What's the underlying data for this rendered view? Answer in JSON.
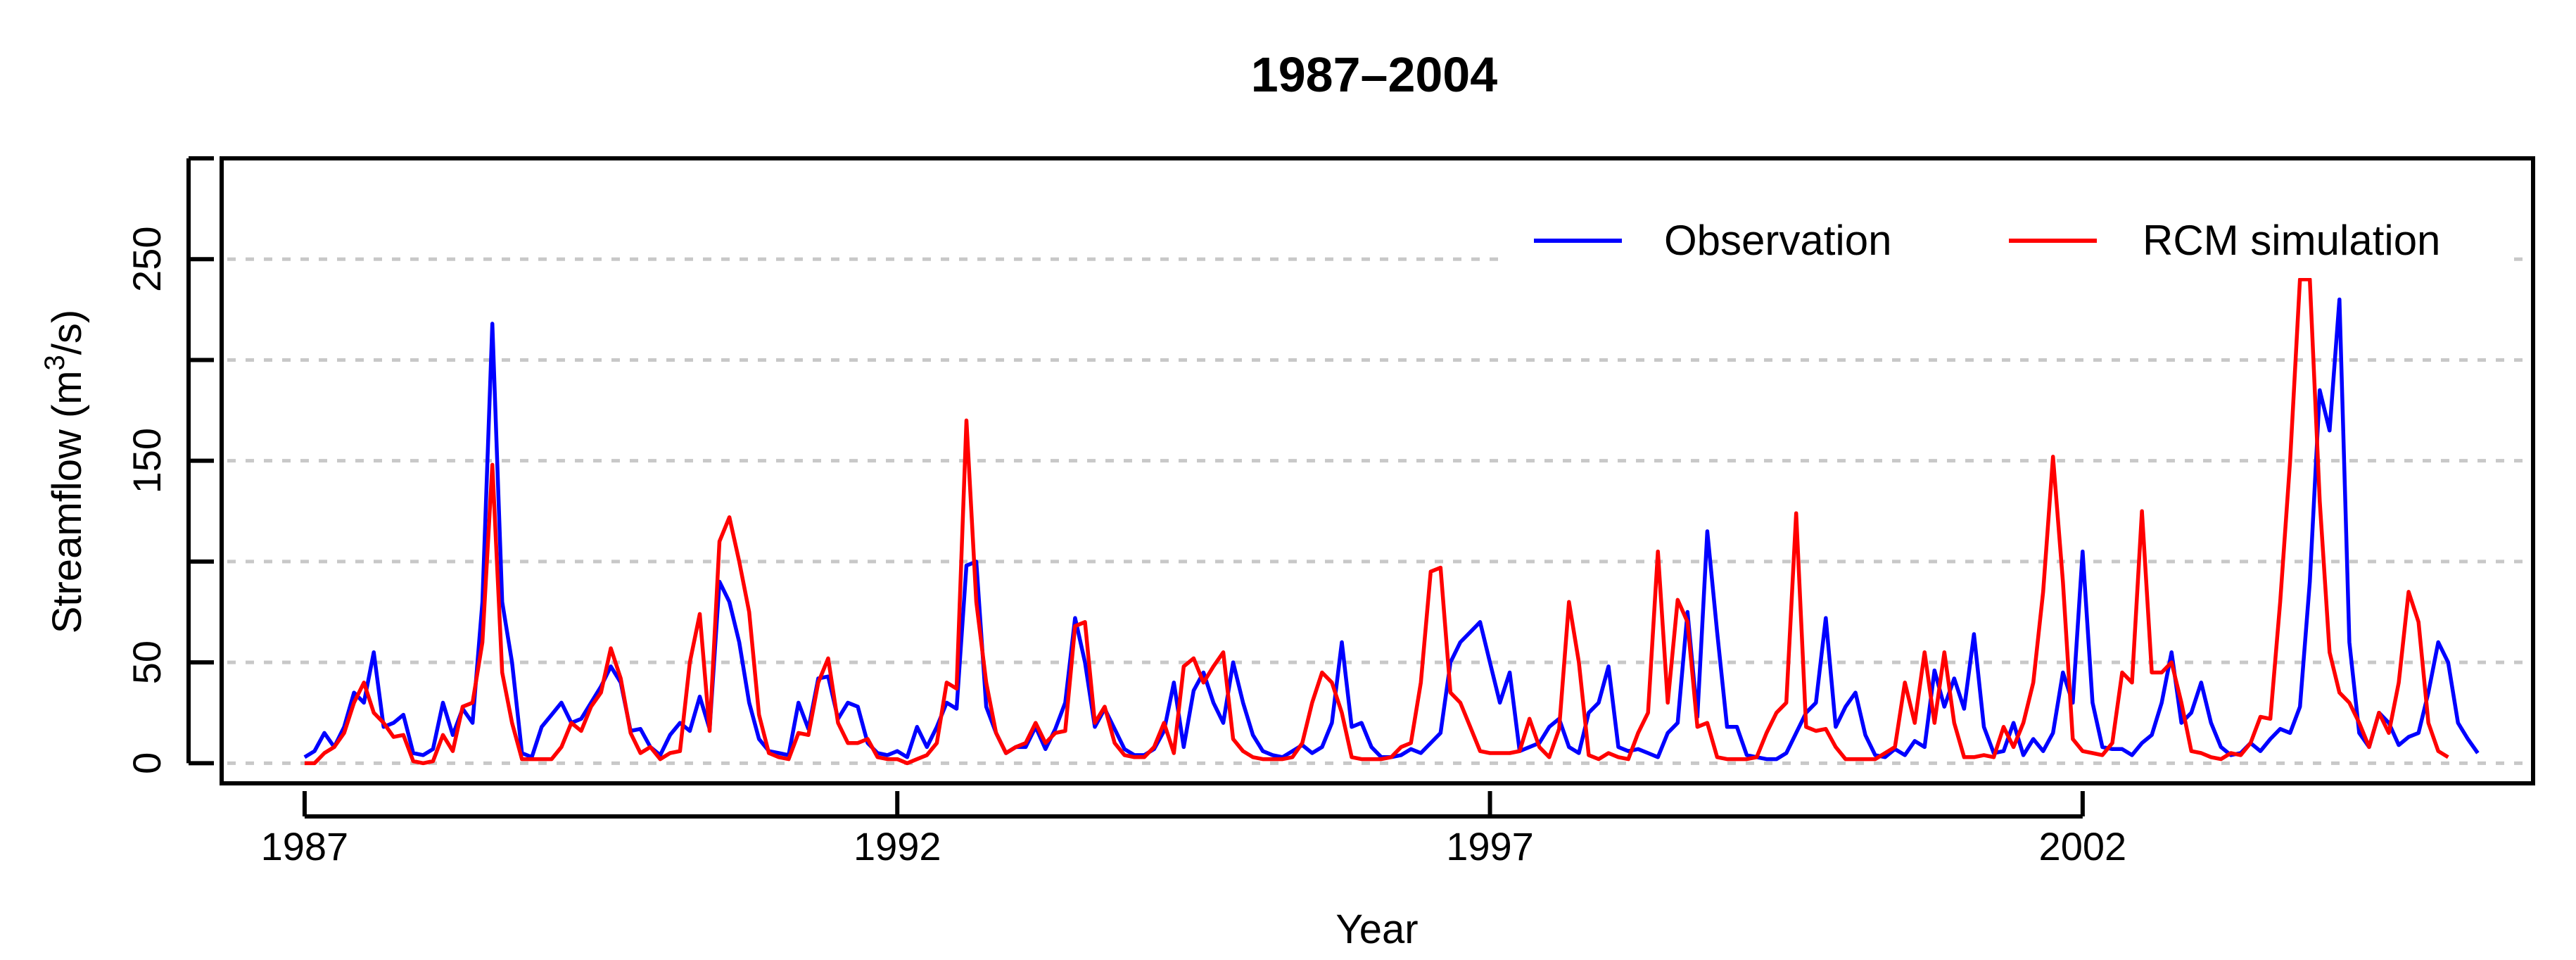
{
  "chart_data": {
    "type": "line",
    "title": "1987–2004",
    "xlabel": "Year",
    "ylabel": "Streamflow (m",
    "ylabel_superscript": "3",
    "ylabel_suffix": "/s)",
    "xlim": [
      1986.3,
      2005.8
    ],
    "ylim": [
      -10,
      300
    ],
    "x_ticks": [
      1987,
      1992,
      1997,
      2002
    ],
    "x_tick_labels": [
      "1987",
      "1992",
      "1997",
      "2002"
    ],
    "y_ticks": [
      0,
      50,
      100,
      150,
      200,
      250,
      300
    ],
    "y_tick_labels": [
      "0",
      "50",
      "150",
      "250"
    ],
    "y_tick_labels_at": [
      0,
      50,
      150,
      250
    ],
    "grid": true,
    "legend_position": "top-right",
    "start_year": 1987,
    "step": "monthly",
    "series": [
      {
        "name": "Observation",
        "color": "#0000ff",
        "values": [
          3,
          6,
          15,
          8,
          18,
          35,
          30,
          55,
          18,
          20,
          24,
          5,
          4,
          7,
          30,
          14,
          27,
          20,
          80,
          218,
          80,
          50,
          5,
          3,
          18,
          24,
          30,
          20,
          22,
          30,
          38,
          48,
          40,
          16,
          17,
          8,
          4,
          14,
          20,
          16,
          33,
          17,
          90,
          80,
          60,
          30,
          12,
          6,
          5,
          4,
          30,
          17,
          42,
          43,
          22,
          30,
          28,
          10,
          5,
          4,
          6,
          3,
          18,
          8,
          18,
          30,
          27,
          98,
          100,
          28,
          15,
          5,
          8,
          8,
          18,
          7,
          17,
          30,
          72,
          50,
          18,
          27,
          17,
          7,
          4,
          4,
          7,
          16,
          40,
          8,
          36,
          45,
          30,
          20,
          50,
          30,
          14,
          6,
          4,
          3,
          6,
          9,
          5,
          8,
          20,
          60,
          18,
          20,
          8,
          3,
          3,
          4,
          7,
          5,
          10,
          15,
          50,
          60,
          65,
          70,
          50,
          30,
          45,
          6,
          8,
          10,
          18,
          22,
          8,
          5,
          25,
          30,
          48,
          8,
          6,
          7,
          5,
          3,
          15,
          20,
          75,
          23,
          115,
          65,
          18,
          18,
          4,
          3,
          2,
          2,
          5,
          15,
          25,
          30,
          72,
          18,
          28,
          35,
          14,
          4,
          3,
          7,
          4,
          11,
          8,
          46,
          28,
          42,
          27,
          64,
          18,
          5,
          6,
          20,
          4,
          12,
          6,
          15,
          45,
          30,
          105,
          30,
          8,
          7,
          7,
          4,
          10,
          14,
          30,
          55,
          20,
          25,
          40,
          20,
          8,
          4,
          5,
          10,
          6,
          12,
          17,
          15,
          28,
          90,
          185,
          165,
          230,
          60,
          15,
          8,
          25,
          20,
          9,
          13,
          15,
          35,
          60,
          50,
          20,
          12,
          5
        ]
      },
      {
        "name": "RCM simulation",
        "color": "#ff0000",
        "values": [
          0,
          0,
          5,
          8,
          15,
          30,
          40,
          25,
          20,
          13,
          14,
          1,
          0,
          1,
          14,
          6,
          28,
          30,
          60,
          148,
          45,
          20,
          2,
          2,
          2,
          2,
          8,
          20,
          16,
          28,
          35,
          57,
          42,
          15,
          5,
          8,
          2,
          5,
          6,
          50,
          74,
          16,
          110,
          122,
          100,
          75,
          24,
          5,
          3,
          2,
          15,
          14,
          40,
          52,
          20,
          10,
          10,
          12,
          3,
          2,
          2,
          0,
          2,
          4,
          10,
          40,
          37,
          170,
          80,
          40,
          15,
          5,
          8,
          10,
          20,
          10,
          15,
          16,
          68,
          70,
          20,
          28,
          10,
          4,
          3,
          3,
          8,
          20,
          5,
          48,
          52,
          40,
          48,
          55,
          12,
          6,
          3,
          2,
          2,
          2,
          3,
          10,
          30,
          45,
          40,
          25,
          3,
          2,
          2,
          2,
          3,
          8,
          10,
          40,
          95,
          97,
          35,
          30,
          18,
          6,
          5,
          5,
          5,
          6,
          22,
          8,
          3,
          17,
          80,
          50,
          4,
          2,
          5,
          3,
          2,
          15,
          25,
          105,
          30,
          81,
          70,
          18,
          20,
          3,
          2,
          2,
          2,
          3,
          15,
          25,
          30,
          124,
          18,
          16,
          17,
          8,
          2,
          2,
          2,
          2,
          5,
          8,
          40,
          20,
          55,
          20,
          55,
          20,
          3,
          3,
          4,
          3,
          18,
          8,
          20,
          40,
          85,
          152,
          90,
          12,
          6,
          5,
          4,
          10,
          45,
          40,
          125,
          45,
          45,
          50,
          30,
          6,
          5,
          3,
          2,
          5,
          4,
          10,
          23,
          22,
          80,
          150,
          240,
          240,
          130,
          55,
          35,
          30,
          20,
          8,
          25,
          15,
          40,
          85,
          70,
          20,
          6,
          3
        ]
      }
    ]
  }
}
